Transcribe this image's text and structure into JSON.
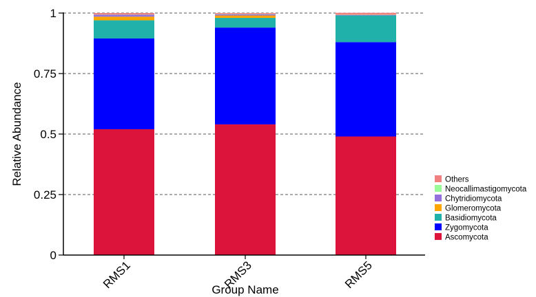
{
  "chart_data": {
    "type": "bar",
    "stacked": true,
    "title": "",
    "xlabel": "Group Name",
    "ylabel": "Relative Abundance",
    "ylim": [
      0,
      1
    ],
    "yticks": [
      0,
      0.25,
      0.5,
      0.75,
      1
    ],
    "ytick_labels": [
      "0",
      "0.25",
      "0.5",
      "0.75",
      "1"
    ],
    "grid": "horizontal-dashed",
    "legend_position": "right",
    "categories": [
      "RMS1",
      "RMS3",
      "RMS5"
    ],
    "series": [
      {
        "name": "Ascomycota",
        "color": "#dc143c",
        "values": [
          0.52,
          0.54,
          0.49
        ]
      },
      {
        "name": "Zygomycota",
        "color": "#0000ff",
        "values": [
          0.375,
          0.4,
          0.39
        ]
      },
      {
        "name": "Basidiomycota",
        "color": "#20b2aa",
        "values": [
          0.075,
          0.04,
          0.11
        ]
      },
      {
        "name": "Glomeromycota",
        "color": "#ffa500",
        "values": [
          0.015,
          0.01,
          0.0
        ]
      },
      {
        "name": "Chytridiomycota",
        "color": "#9370db",
        "values": [
          0.008,
          0.005,
          0.002
        ]
      },
      {
        "name": "Neocallimastigomycota",
        "color": "#98fb98",
        "values": [
          0.001,
          0.001,
          0.001
        ]
      },
      {
        "name": "Others",
        "color": "#f08080",
        "values": [
          0.006,
          0.004,
          0.008
        ]
      }
    ],
    "legend_order": [
      "Others",
      "Neocallimastigomycota",
      "Chytridiomycota",
      "Glomeromycota",
      "Basidiomycota",
      "Zygomycota",
      "Ascomycota"
    ]
  }
}
